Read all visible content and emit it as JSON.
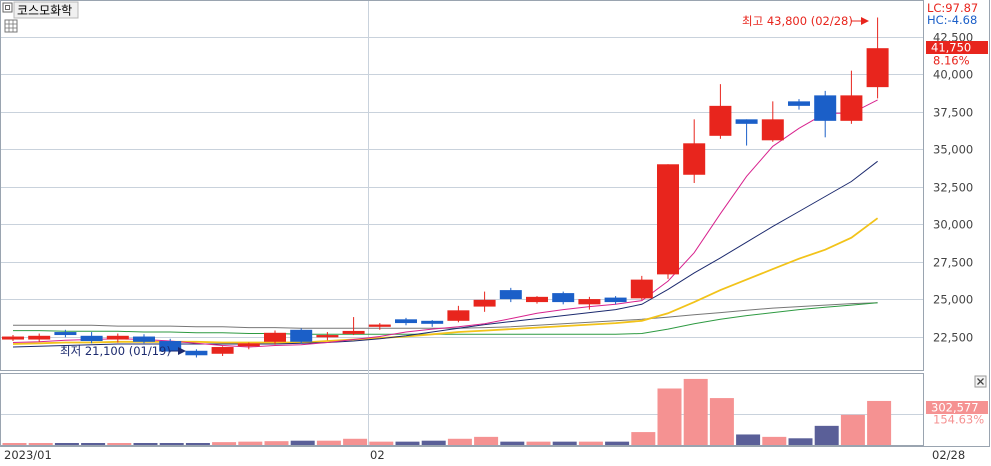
{
  "stock": {
    "name": "코스모화학"
  },
  "indicators": {
    "lc": "LC:97.87",
    "hc": "HC:-4.68"
  },
  "icons": {
    "menu": "square-icon",
    "grid": "grid-icon",
    "close": "close-icon"
  },
  "annotations": {
    "high": "최고 43,800 (02/28)",
    "low": "최저 21,100 (01/19)"
  },
  "price_tag": {
    "value": "41,750",
    "change": "8.16%"
  },
  "volume_tag": {
    "value": "302,577",
    "change": "154.63%"
  },
  "x_labels": {
    "start": "2023/01",
    "mid": "02",
    "end": "02/28"
  },
  "colors": {
    "up": "#e8251d",
    "down": "#1b5fc8",
    "ma5": "#d8238e",
    "ma20": "#1c2a6e",
    "ma60": "#f2c31a",
    "ma120": "#2e9a42",
    "ma240": "#777777",
    "vol_up": "#f59292",
    "vol_down": "#5a5f98",
    "grid": "#c9d2dc"
  },
  "chart_data": {
    "type": "candlestick",
    "y_ticks": [
      "42,500",
      "40,000",
      "37,500",
      "35,000",
      "32,500",
      "30,000",
      "27,500",
      "25,000",
      "22,500"
    ],
    "ylim": [
      20400,
      44700
    ],
    "grid": true,
    "candles": [
      {
        "o": 22350,
        "h": 22600,
        "l": 22200,
        "c": 22450
      },
      {
        "o": 22300,
        "h": 22700,
        "l": 22150,
        "c": 22550
      },
      {
        "o": 22800,
        "h": 22950,
        "l": 22450,
        "c": 22600
      },
      {
        "o": 22550,
        "h": 22800,
        "l": 22050,
        "c": 22200
      },
      {
        "o": 22300,
        "h": 22700,
        "l": 22100,
        "c": 22550
      },
      {
        "o": 22500,
        "h": 22650,
        "l": 22050,
        "c": 22150
      },
      {
        "o": 22200,
        "h": 22350,
        "l": 21450,
        "c": 21500
      },
      {
        "o": 21550,
        "h": 21650,
        "l": 21100,
        "c": 21250
      },
      {
        "o": 21350,
        "h": 21850,
        "l": 21200,
        "c": 21800
      },
      {
        "o": 21850,
        "h": 22100,
        "l": 21650,
        "c": 22050
      },
      {
        "o": 22150,
        "h": 22900,
        "l": 21950,
        "c": 22750
      },
      {
        "o": 22950,
        "h": 23050,
        "l": 22050,
        "c": 22150
      },
      {
        "o": 22450,
        "h": 22800,
        "l": 22250,
        "c": 22600
      },
      {
        "o": 22750,
        "h": 23800,
        "l": 22600,
        "c": 22800
      },
      {
        "o": 23150,
        "h": 23400,
        "l": 22950,
        "c": 23300
      },
      {
        "o": 23650,
        "h": 23750,
        "l": 23250,
        "c": 23400
      },
      {
        "o": 23500,
        "h": 23600,
        "l": 23150,
        "c": 23400
      },
      {
        "o": 23550,
        "h": 24550,
        "l": 23450,
        "c": 24250
      },
      {
        "o": 24500,
        "h": 25500,
        "l": 24150,
        "c": 24950
      },
      {
        "o": 25600,
        "h": 25750,
        "l": 24800,
        "c": 25000
      },
      {
        "o": 24800,
        "h": 25200,
        "l": 24700,
        "c": 25150
      },
      {
        "o": 25400,
        "h": 25500,
        "l": 24650,
        "c": 24800
      },
      {
        "o": 24650,
        "h": 25150,
        "l": 24300,
        "c": 25000
      },
      {
        "o": 25100,
        "h": 25200,
        "l": 24650,
        "c": 24800
      },
      {
        "o": 25050,
        "h": 26550,
        "l": 24950,
        "c": 26300
      },
      {
        "o": 26650,
        "h": 34000,
        "l": 26350,
        "c": 34000
      },
      {
        "o": 33300,
        "h": 37000,
        "l": 32750,
        "c": 35400
      },
      {
        "o": 35900,
        "h": 39350,
        "l": 35700,
        "c": 37900
      },
      {
        "o": 37000,
        "h": 37000,
        "l": 35250,
        "c": 36700
      },
      {
        "o": 35600,
        "h": 38200,
        "l": 35500,
        "c": 37000
      },
      {
        "o": 38200,
        "h": 38350,
        "l": 37650,
        "c": 37900
      },
      {
        "o": 38600,
        "h": 38900,
        "l": 35800,
        "c": 36900
      },
      {
        "o": 36900,
        "h": 40250,
        "l": 36700,
        "c": 38600
      },
      {
        "o": 39150,
        "h": 43800,
        "l": 38400,
        "c": 41750
      }
    ],
    "ma5": [
      22100,
      22150,
      22250,
      22300,
      22350,
      22300,
      22200,
      22050,
      21900,
      21800,
      21900,
      21950,
      22100,
      22300,
      22500,
      22800,
      23000,
      23150,
      23350,
      23700,
      24050,
      24300,
      24500,
      24650,
      24900,
      26200,
      28100,
      30700,
      33200,
      35200,
      36400,
      37400,
      37400,
      38300
    ],
    "ma20": [
      21800,
      21850,
      21900,
      21950,
      22000,
      22000,
      22000,
      22000,
      22000,
      22000,
      22000,
      22050,
      22100,
      22200,
      22350,
      22550,
      22800,
      23050,
      23300,
      23500,
      23700,
      23900,
      24100,
      24300,
      24650,
      25650,
      26750,
      27750,
      28800,
      29850,
      30850,
      31850,
      32850,
      34200
    ],
    "ma60": [
      22000,
      22050,
      22100,
      22100,
      22150,
      22150,
      22150,
      22150,
      22100,
      22100,
      22100,
      22100,
      22200,
      22300,
      22400,
      22500,
      22650,
      22800,
      22900,
      23000,
      23100,
      23200,
      23300,
      23400,
      23550,
      24050,
      24800,
      25600,
      26300,
      27000,
      27700,
      28300,
      29100,
      30400
    ],
    "ma120": [
      22900,
      22900,
      22850,
      22850,
      22850,
      22800,
      22800,
      22750,
      22750,
      22700,
      22700,
      22650,
      22650,
      22650,
      22650,
      22650,
      22650,
      22650,
      22650,
      22650,
      22650,
      22650,
      22650,
      22650,
      22700,
      23000,
      23350,
      23650,
      23900,
      24100,
      24300,
      24450,
      24600,
      24750
    ],
    "ma240": [
      23250,
      23250,
      23250,
      23250,
      23200,
      23200,
      23200,
      23150,
      23150,
      23100,
      23100,
      23050,
      23050,
      23050,
      23050,
      23050,
      23050,
      23050,
      23100,
      23150,
      23250,
      23350,
      23450,
      23550,
      23650,
      23800,
      23950,
      24100,
      24250,
      24400,
      24500,
      24600,
      24700,
      24750
    ],
    "volume_ratio": [
      0.04,
      0.04,
      0.04,
      0.04,
      0.04,
      0.04,
      0.04,
      0.04,
      0.06,
      0.07,
      0.08,
      0.09,
      0.09,
      0.13,
      0.07,
      0.07,
      0.09,
      0.13,
      0.17,
      0.07,
      0.07,
      0.07,
      0.07,
      0.07,
      0.27,
      1.18,
      1.38,
      0.98,
      0.22,
      0.17,
      0.14,
      0.4,
      0.63,
      0.92
    ]
  }
}
